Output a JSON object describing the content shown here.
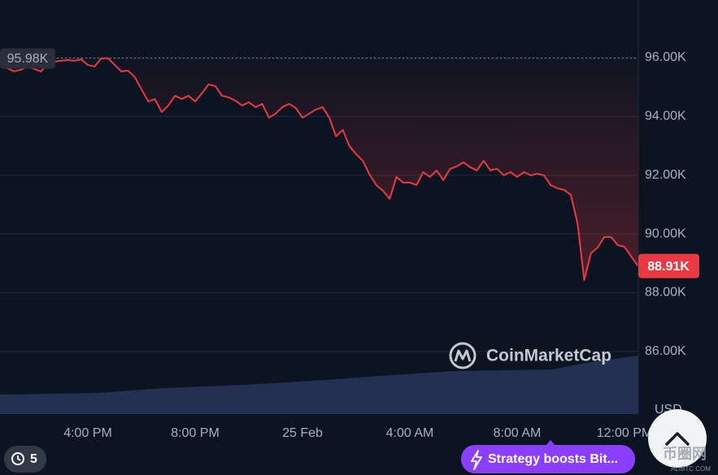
{
  "chart_data": {
    "type": "line",
    "color": "#ea3943",
    "categories": [
      null,
      null,
      null,
      null,
      null,
      null,
      null,
      null,
      null,
      null,
      null,
      null,
      null,
      "4:00 PM",
      null,
      null,
      null,
      null,
      null,
      null,
      null,
      null,
      null,
      null,
      null,
      null,
      null,
      null,
      null,
      "8:00 PM",
      null,
      null,
      null,
      null,
      null,
      null,
      null,
      null,
      null,
      null,
      null,
      null,
      null,
      null,
      null,
      "25 Feb",
      null,
      null,
      null,
      null,
      null,
      null,
      null,
      null,
      null,
      null,
      null,
      null,
      null,
      null,
      null,
      "4:00 AM",
      null,
      null,
      null,
      null,
      null,
      null,
      null,
      null,
      null,
      null,
      null,
      null,
      null,
      null,
      null,
      "8:00 AM",
      null,
      null,
      null,
      null,
      null,
      null,
      null,
      null,
      null,
      null,
      null,
      null,
      null,
      null,
      null,
      "12:00 PM",
      null,
      null
    ],
    "values": [
      95751,
      95641,
      95530,
      95586,
      95696,
      95613,
      95530,
      95751,
      95862,
      95890,
      95917,
      95890,
      95945,
      95751,
      95696,
      95972,
      95980,
      95751,
      95530,
      95558,
      95337,
      94923,
      94508,
      94591,
      94150,
      94370,
      94702,
      94591,
      94702,
      94508,
      94785,
      95089,
      95033,
      94702,
      94647,
      94536,
      94370,
      94481,
      94315,
      94426,
      93956,
      94094,
      94315,
      94426,
      94288,
      93956,
      94094,
      94232,
      94315,
      93956,
      93321,
      93542,
      92989,
      92713,
      92492,
      92023,
      91664,
      91470,
      91194,
      91940,
      91746,
      91746,
      91664,
      92106,
      91940,
      92161,
      91830,
      92216,
      92299,
      92437,
      92271,
      92161,
      92492,
      92161,
      92216,
      91995,
      92106,
      91940,
      92106,
      91995,
      92050,
      91995,
      91664,
      91553,
      91498,
      91332,
      90365,
      88432,
      89344,
      89537,
      89896,
      89896,
      89620,
      89564,
      89233,
      88910
    ],
    "ylim": [
      83870,
      97960
    ],
    "yticks": [
      {
        "value": 86000,
        "label": "86.00K"
      },
      {
        "value": 88000,
        "label": "88.00K"
      },
      {
        "value": 90000,
        "label": "90.00K"
      },
      {
        "value": 92000,
        "label": "92.00K"
      },
      {
        "value": 94000,
        "label": "94.00K"
      },
      {
        "value": 96000,
        "label": "96.00K"
      }
    ],
    "grid": true,
    "currency": "USD",
    "reference": {
      "value": 95980,
      "label": "95.98K"
    },
    "last_price": {
      "value": 88910,
      "label": "88.91K"
    },
    "watermark": "CoinMarketCap"
  },
  "ui": {
    "history_count": "5",
    "news": "Strategy boosts Bit...",
    "site_watermark": "币圈网",
    "site_url": "ALIBTC.COM"
  }
}
